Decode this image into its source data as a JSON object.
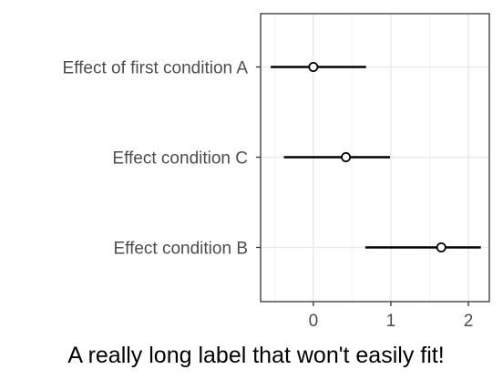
{
  "chart_data": {
    "type": "scatter",
    "subtype": "point-range (estimate with interval)",
    "title": "",
    "xlabel": "A really long label that won't easily fit!",
    "ylabel": "",
    "categories": [
      "Effect of first condition A",
      "Effect condition C",
      "Effect condition B"
    ],
    "estimates": [
      0.0,
      0.42,
      1.65
    ],
    "lower": [
      -0.55,
      -0.38,
      0.67
    ],
    "upper": [
      0.68,
      0.99,
      2.16
    ],
    "x_ticks": [
      0,
      1,
      2
    ],
    "xlim": [
      -0.68,
      2.27
    ],
    "grid": true,
    "legend": "none",
    "colors": {
      "line": "#000000",
      "point_fill": "#ffffff",
      "grid": "#ebebeb",
      "panel_border": "#333333",
      "tick_label": "#4d4d4d"
    }
  }
}
